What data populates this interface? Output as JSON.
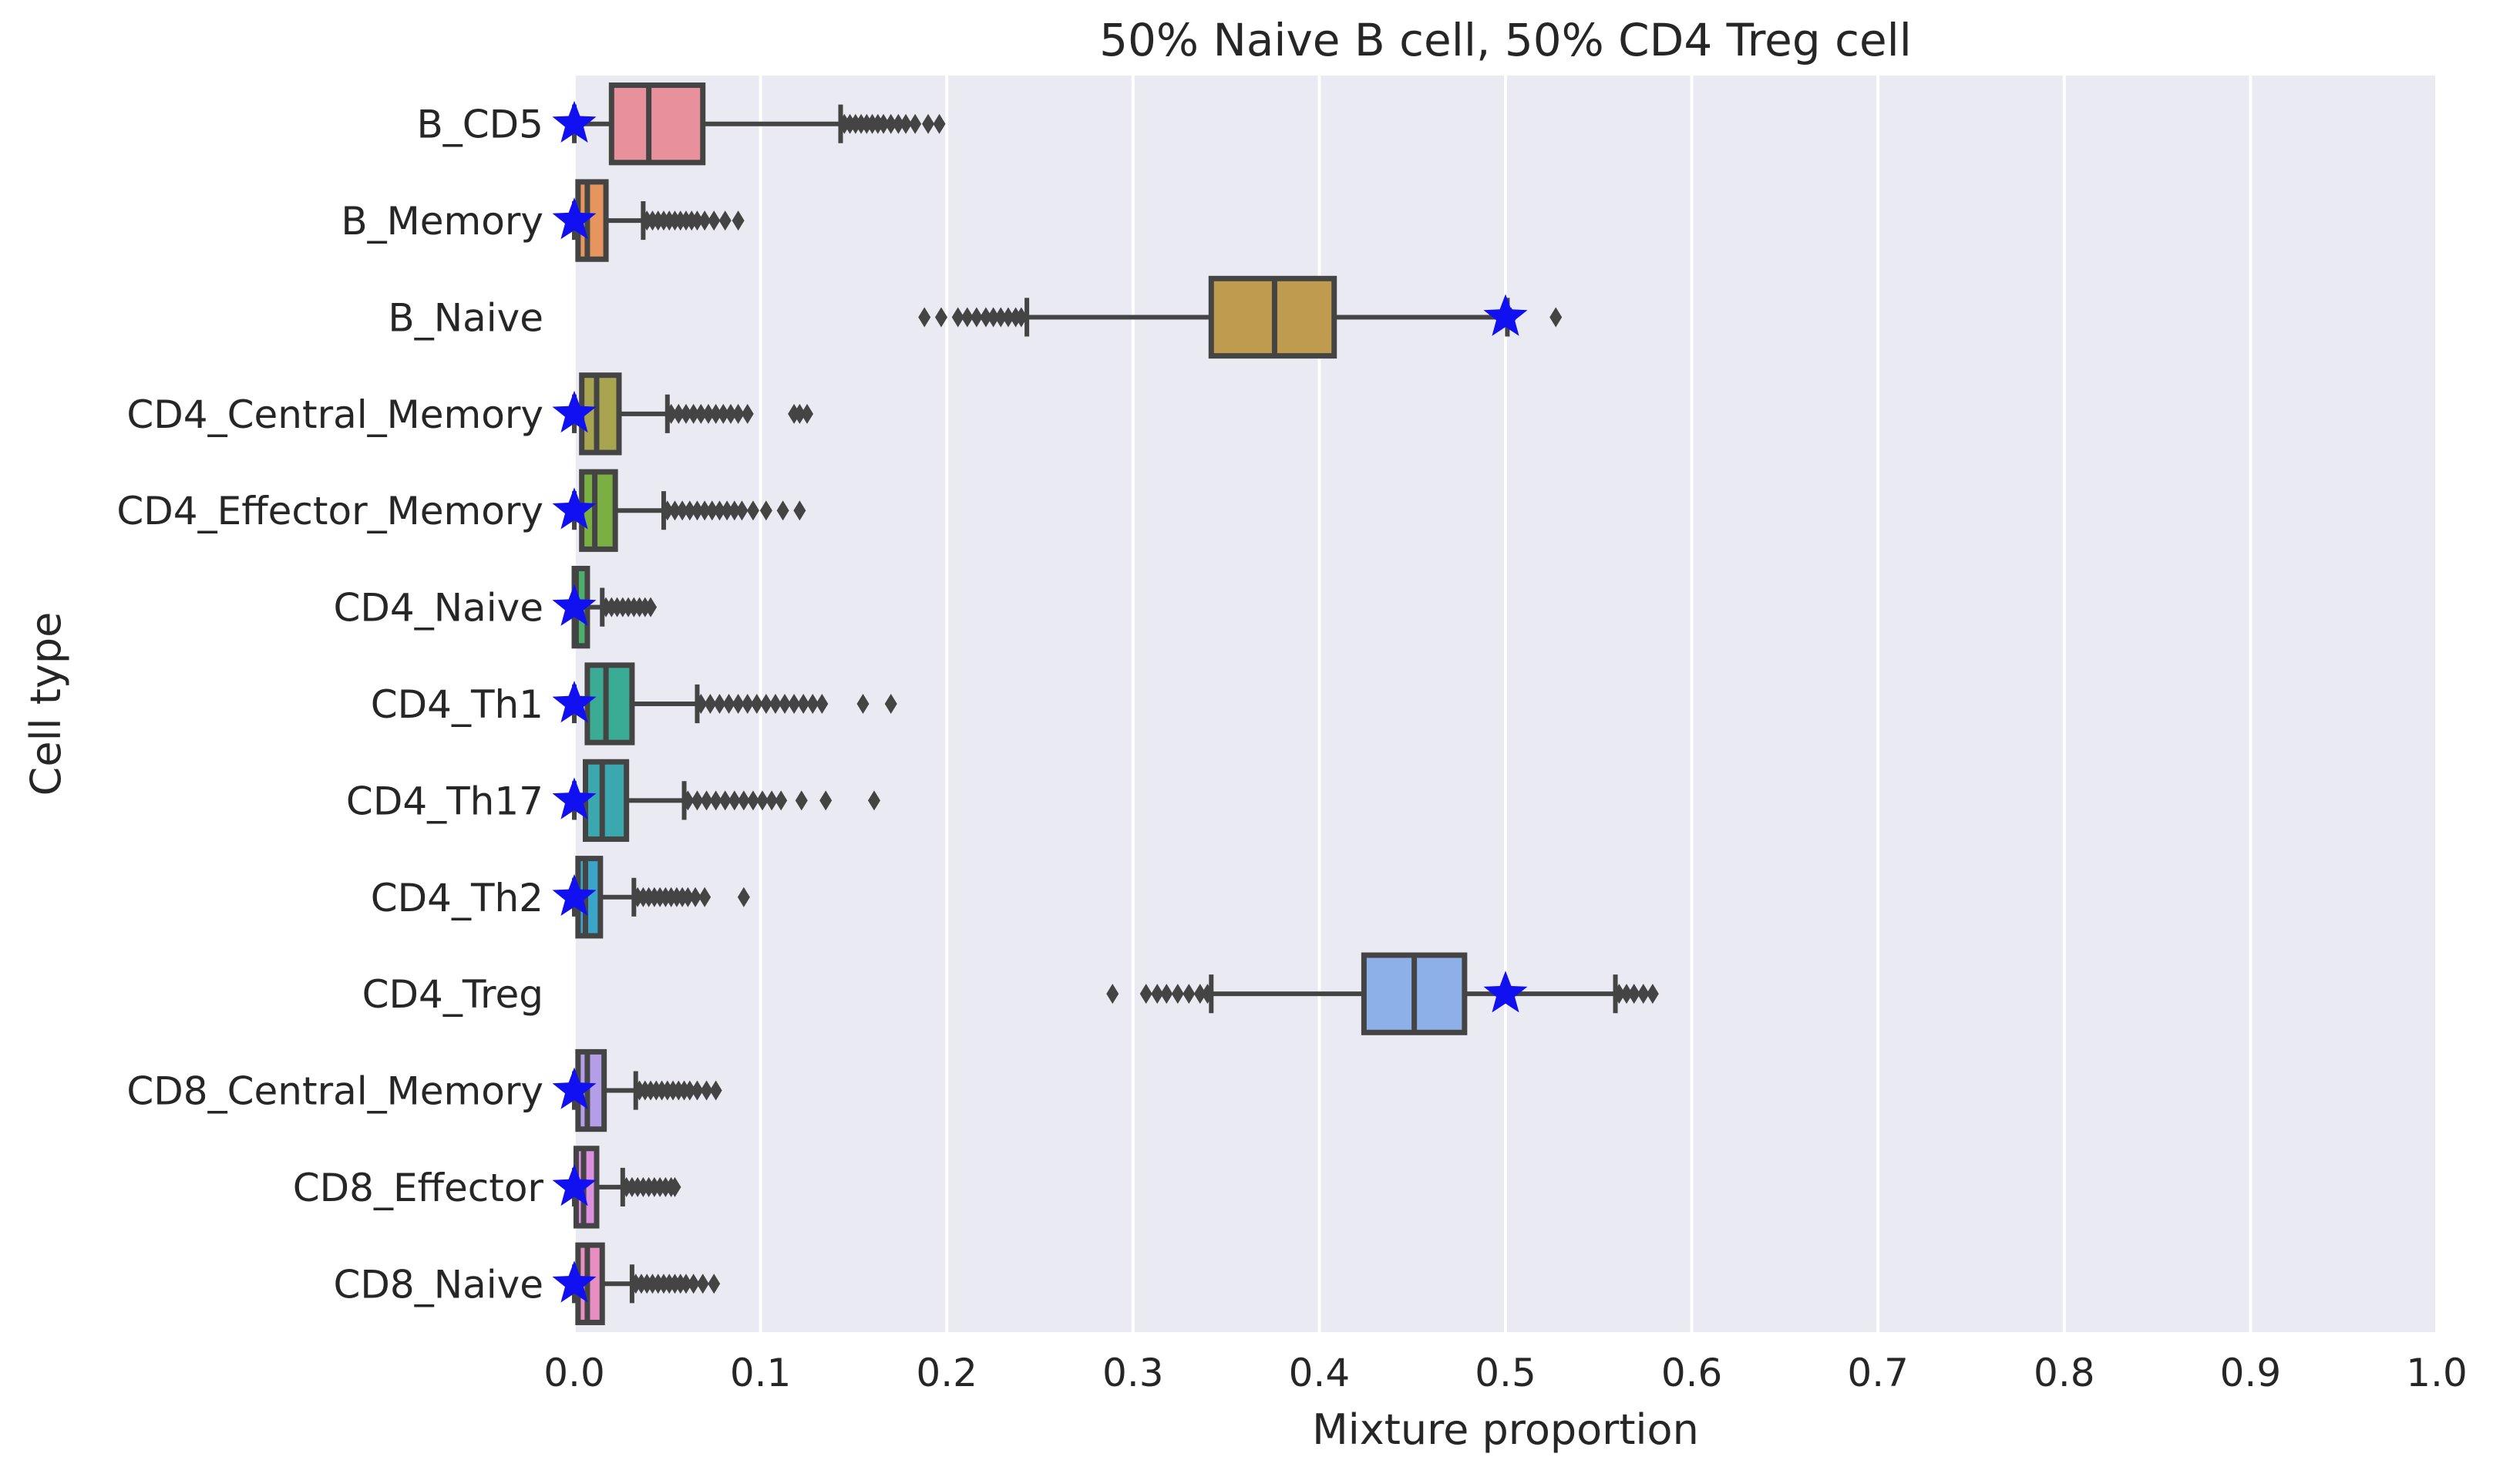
{
  "chart_data": {
    "type": "boxplot",
    "title": "50% Naive B cell, 50% CD4 Treg cell",
    "xlabel": "Mixture proportion",
    "ylabel": "Cell type",
    "xlim": [
      0.0,
      1.0
    ],
    "xticks": [
      "0.0",
      "0.1",
      "0.2",
      "0.3",
      "0.4",
      "0.5",
      "0.6",
      "0.7",
      "0.8",
      "0.9",
      "1.0"
    ],
    "grid": "vertical",
    "background": "#EAEAF2",
    "categories": [
      "B_CD5",
      "B_Memory",
      "B_Naive",
      "CD4_Central_Memory",
      "CD4_Effector_Memory",
      "CD4_Naive",
      "CD4_Th1",
      "CD4_Th17",
      "CD4_Th2",
      "CD4_Treg",
      "CD8_Central_Memory",
      "CD8_Effector",
      "CD8_Naive"
    ],
    "boxes": [
      {
        "category": "B_CD5",
        "color": "#E8919C",
        "q1": 0.02,
        "median": 0.04,
        "q3": 0.069,
        "whisker_low": 0.0,
        "whisker_high": 0.143,
        "outliers": [
          0.145,
          0.148,
          0.151,
          0.154,
          0.157,
          0.16,
          0.163,
          0.166,
          0.17,
          0.174,
          0.178,
          0.183,
          0.19,
          0.196
        ],
        "truth": 0.0
      },
      {
        "category": "B_Memory",
        "color": "#E5955D",
        "q1": 0.002,
        "median": 0.007,
        "q3": 0.017,
        "whisker_low": 0.0,
        "whisker_high": 0.037,
        "outliers": [
          0.039,
          0.042,
          0.045,
          0.048,
          0.051,
          0.054,
          0.057,
          0.06,
          0.063,
          0.066,
          0.07,
          0.075,
          0.081,
          0.088
        ],
        "truth": 0.0
      },
      {
        "category": "B_Naive",
        "color": "#BE9B4F",
        "q1": 0.342,
        "median": 0.376,
        "q3": 0.408,
        "whisker_low": 0.243,
        "whisker_high": 0.501,
        "outliers": [
          0.188,
          0.197,
          0.206,
          0.211,
          0.216,
          0.221,
          0.225,
          0.229,
          0.233,
          0.237,
          0.24,
          0.503,
          0.527
        ],
        "truth": 0.5
      },
      {
        "category": "CD4_Central_Memory",
        "color": "#A8A44F",
        "q1": 0.004,
        "median": 0.012,
        "q3": 0.024,
        "whisker_low": 0.0,
        "whisker_high": 0.05,
        "outliers": [
          0.052,
          0.056,
          0.06,
          0.064,
          0.068,
          0.072,
          0.076,
          0.08,
          0.084,
          0.088,
          0.093,
          0.118,
          0.121,
          0.125
        ],
        "truth": 0.0
      },
      {
        "category": "CD4_Effector_Memory",
        "color": "#7BAF44",
        "q1": 0.004,
        "median": 0.011,
        "q3": 0.022,
        "whisker_low": 0.0,
        "whisker_high": 0.048,
        "outliers": [
          0.05,
          0.054,
          0.058,
          0.062,
          0.066,
          0.07,
          0.074,
          0.078,
          0.082,
          0.086,
          0.09,
          0.096,
          0.103,
          0.112,
          0.121
        ],
        "truth": 0.0
      },
      {
        "category": "CD4_Naive",
        "color": "#4DAE6C",
        "q1": 0.0,
        "median": 0.001,
        "q3": 0.007,
        "whisker_low": 0.0,
        "whisker_high": 0.015,
        "outliers": [
          0.017,
          0.02,
          0.023,
          0.026,
          0.029,
          0.032,
          0.035,
          0.038,
          0.041
        ],
        "truth": 0.0
      },
      {
        "category": "CD4_Th1",
        "color": "#3AAB95",
        "q1": 0.007,
        "median": 0.017,
        "q3": 0.031,
        "whisker_low": 0.0,
        "whisker_high": 0.066,
        "outliers": [
          0.068,
          0.073,
          0.078,
          0.083,
          0.088,
          0.093,
          0.098,
          0.103,
          0.108,
          0.113,
          0.118,
          0.123,
          0.128,
          0.133,
          0.155,
          0.17
        ],
        "truth": 0.0
      },
      {
        "category": "CD4_Th17",
        "color": "#3BA8B0",
        "q1": 0.006,
        "median": 0.015,
        "q3": 0.028,
        "whisker_low": 0.0,
        "whisker_high": 0.059,
        "outliers": [
          0.061,
          0.066,
          0.071,
          0.076,
          0.081,
          0.086,
          0.091,
          0.096,
          0.101,
          0.106,
          0.111,
          0.122,
          0.135,
          0.161
        ],
        "truth": 0.0
      },
      {
        "category": "CD4_Th2",
        "color": "#3AA4C9",
        "q1": 0.002,
        "median": 0.006,
        "q3": 0.014,
        "whisker_low": 0.0,
        "whisker_high": 0.032,
        "outliers": [
          0.034,
          0.037,
          0.04,
          0.043,
          0.046,
          0.049,
          0.052,
          0.055,
          0.058,
          0.061,
          0.065,
          0.07,
          0.091
        ],
        "truth": 0.0
      },
      {
        "category": "CD4_Treg",
        "color": "#8EB0E8",
        "q1": 0.424,
        "median": 0.451,
        "q3": 0.478,
        "whisker_low": 0.342,
        "whisker_high": 0.559,
        "outliers": [
          0.289,
          0.307,
          0.313,
          0.318,
          0.324,
          0.33,
          0.336,
          0.34,
          0.561,
          0.565,
          0.569,
          0.574,
          0.579
        ],
        "truth": 0.5
      },
      {
        "category": "CD8_Central_Memory",
        "color": "#B59EE8",
        "q1": 0.002,
        "median": 0.007,
        "q3": 0.016,
        "whisker_low": 0.0,
        "whisker_high": 0.033,
        "outliers": [
          0.035,
          0.038,
          0.041,
          0.044,
          0.047,
          0.05,
          0.053,
          0.056,
          0.059,
          0.062,
          0.066,
          0.071,
          0.076
        ],
        "truth": 0.0
      },
      {
        "category": "CD8_Effector",
        "color": "#DD8FE0",
        "q1": 0.001,
        "median": 0.005,
        "q3": 0.012,
        "whisker_low": 0.0,
        "whisker_high": 0.026,
        "outliers": [
          0.028,
          0.031,
          0.034,
          0.037,
          0.04,
          0.043,
          0.046,
          0.049,
          0.052,
          0.054
        ],
        "truth": 0.0
      },
      {
        "category": "CD8_Naive",
        "color": "#E88FC1",
        "q1": 0.002,
        "median": 0.007,
        "q3": 0.015,
        "whisker_low": 0.0,
        "whisker_high": 0.031,
        "outliers": [
          0.033,
          0.036,
          0.039,
          0.042,
          0.045,
          0.048,
          0.051,
          0.054,
          0.057,
          0.06,
          0.064,
          0.069,
          0.075
        ],
        "truth": 0.0
      }
    ],
    "truth_marker": {
      "shape": "star",
      "color": "#1010F0"
    }
  }
}
